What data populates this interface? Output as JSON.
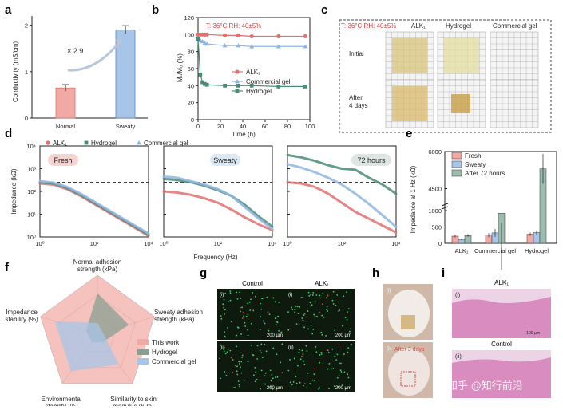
{
  "colors": {
    "red": "#e36f6f",
    "blue": "#8fb6e3",
    "green": "#4a8b78",
    "red_fill": "#f2a8a3",
    "green_fill": "#9cbcb0",
    "blue_fill": "#a7c5e8",
    "fluoro_bg": "#0d1a0d",
    "fluoro_dot": "#3ed46b",
    "he_pink": "#d98cbf",
    "skin": "#d9b9ab"
  },
  "panels": {
    "a": {
      "letter": "a"
    },
    "b": {
      "letter": "b"
    },
    "c": {
      "letter": "c",
      "condition": "T: 36°C  RH: 40±5%",
      "cols": [
        "ALK₁",
        "Hydrogel",
        "Commercial gel"
      ],
      "rows": [
        "Initial",
        "After\n4 days"
      ],
      "row1": "Initial",
      "row2a": "After",
      "row2b": "4 days"
    },
    "d": {
      "letter": "d"
    },
    "e": {
      "letter": "e"
    },
    "f": {
      "letter": "f"
    },
    "g": {
      "letter": "g",
      "col1": "Control",
      "col2": "ALK₁",
      "sub_i": "(i)",
      "sub_ii": "(ii)",
      "scale": "200 µm"
    },
    "h": {
      "letter": "h",
      "sub_i": "(i)",
      "sub_ii": "(ii)",
      "note": "After 3 days"
    },
    "i": {
      "letter": "i",
      "title1": "ALK₁",
      "title2": "Control",
      "sub_i": "(i)",
      "sub_ii": "(ii)",
      "scale": "100 µm"
    }
  },
  "watermark": "知乎 @知行前沿",
  "chart_data": [
    {
      "id": "a",
      "type": "bar",
      "categories": [
        "Normal",
        "Sweaty"
      ],
      "values": [
        0.65,
        1.9
      ],
      "errors": [
        0.07,
        0.09
      ],
      "ylabel": "Conductivity (mS/cm)",
      "ylim": [
        0,
        2.2
      ],
      "yticks": [
        "0",
        "1",
        "2"
      ],
      "annotation": "× 2.9"
    },
    {
      "id": "b",
      "type": "line",
      "condition": "T: 36°C  RH: 40±5%",
      "xlabel": "Time (h)",
      "ylabel": "Mₜ/M₀ (%)",
      "xlim": [
        0,
        100
      ],
      "ylim": [
        0,
        120
      ],
      "xticks": [
        "0",
        "20",
        "40",
        "60",
        "80",
        "100"
      ],
      "yticks": [
        "0",
        "20",
        "40",
        "60",
        "80",
        "100",
        "120"
      ],
      "series": [
        {
          "name": "ALK₁",
          "x": [
            0,
            2,
            4,
            6,
            8,
            24,
            36,
            48,
            72,
            96
          ],
          "y": [
            100,
            100,
            100,
            100,
            100,
            99,
            99,
            98,
            98,
            98
          ]
        },
        {
          "name": "Commercial gel",
          "x": [
            0,
            2,
            4,
            6,
            8,
            24,
            36,
            48,
            72,
            96
          ],
          "y": [
            95,
            93,
            92,
            90,
            89,
            87,
            87,
            86,
            86,
            86
          ]
        },
        {
          "name": "Hydrogel",
          "x": [
            0,
            2,
            4,
            6,
            8,
            24,
            36,
            48,
            72,
            96
          ],
          "y": [
            95,
            53,
            44,
            42,
            41,
            40,
            40,
            40,
            39,
            39
          ]
        }
      ]
    },
    {
      "id": "d",
      "type": "line",
      "xlabel": "Frequency (Hz)",
      "ylabel": "Impedance (kΩ)",
      "yticks": [
        "10⁰",
        "10¹",
        "10²",
        "10³",
        "10⁴"
      ],
      "xticks": [
        "10⁰",
        "10²",
        "10⁴"
      ],
      "legend": [
        "ALK₁",
        "Hydrogel",
        "Commercial gel"
      ],
      "subpanels": [
        {
          "title": "Fresh",
          "series": [
            {
              "name": "ALK₁",
              "x": [
                0,
                0.5,
                1,
                1.5,
                2,
                2.5,
                3,
                3.5,
                4
              ],
              "y": [
                2.35,
                2.3,
                2.1,
                1.8,
                1.45,
                1.1,
                0.75,
                0.4,
                0.05
              ]
            },
            {
              "name": "Hydrogel",
              "x": [
                0,
                0.5,
                1,
                1.5,
                2,
                2.5,
                3,
                3.5,
                4
              ],
              "y": [
                2.4,
                2.35,
                2.15,
                1.85,
                1.5,
                1.15,
                0.8,
                0.45,
                0.1
              ]
            },
            {
              "name": "Commercial gel",
              "x": [
                0,
                0.5,
                1,
                1.5,
                2,
                2.5,
                3,
                3.5,
                4
              ],
              "y": [
                2.45,
                2.38,
                2.2,
                1.9,
                1.55,
                1.2,
                0.85,
                0.5,
                0.15
              ]
            }
          ]
        },
        {
          "title": "Sweaty",
          "series": [
            {
              "name": "ALK₁",
              "x": [
                0,
                0.5,
                1,
                1.5,
                2,
                2.5,
                3,
                3.5,
                4
              ],
              "y": [
                2.0,
                1.95,
                1.85,
                1.7,
                1.5,
                1.2,
                0.85,
                0.55,
                0.3
              ]
            },
            {
              "name": "Hydrogel",
              "x": [
                0,
                0.5,
                1,
                1.5,
                2,
                2.5,
                3,
                3.5,
                4
              ],
              "y": [
                2.55,
                2.5,
                2.4,
                2.25,
                2.05,
                1.8,
                1.4,
                0.9,
                0.45
              ]
            },
            {
              "name": "Commercial gel",
              "x": [
                0,
                0.5,
                1,
                1.5,
                2,
                2.5,
                3,
                3.5,
                4
              ],
              "y": [
                2.65,
                2.6,
                2.45,
                2.3,
                2.1,
                1.8,
                1.3,
                0.8,
                0.35
              ]
            }
          ]
        },
        {
          "title": "72 hours",
          "series": [
            {
              "name": "ALK₁",
              "x": [
                0,
                0.5,
                1,
                1.5,
                2,
                2.5,
                3,
                3.5,
                4
              ],
              "y": [
                2.4,
                2.35,
                2.2,
                1.9,
                1.5,
                1.1,
                0.8,
                0.5,
                0.2
              ]
            },
            {
              "name": "Hydrogel",
              "x": [
                0,
                0.5,
                1,
                1.5,
                2,
                2.5,
                3,
                3.5,
                4
              ],
              "y": [
                3.6,
                3.5,
                3.35,
                3.15,
                3.0,
                2.95,
                2.6,
                2.3,
                1.9
              ]
            },
            {
              "name": "Commercial gel",
              "x": [
                0,
                0.5,
                1,
                1.5,
                2,
                2.5,
                3,
                3.5,
                4
              ],
              "y": [
                3.2,
                3.05,
                2.85,
                2.6,
                2.3,
                1.9,
                1.45,
                0.95,
                0.45
              ]
            }
          ]
        }
      ],
      "reference_y": 2.4
    },
    {
      "id": "e",
      "type": "bar",
      "ylabel": "Impedance at 1 Hz (kΩ)",
      "categories": [
        "ALK₁",
        "Commercial gel",
        "Hydrogel"
      ],
      "yticks": [
        "0",
        "500",
        "1000",
        "4500",
        "6000"
      ],
      "legend": [
        "Fresh",
        "Sweaty",
        "After 72 hours"
      ],
      "series": [
        {
          "name": "Fresh",
          "values": [
            220,
            250,
            280
          ],
          "errors": [
            40,
            60,
            50
          ]
        },
        {
          "name": "Sweaty",
          "values": [
            120,
            320,
            330
          ],
          "errors": [
            30,
            120,
            60
          ]
        },
        {
          "name": "After 72 hours",
          "values": [
            240,
            920,
            5300
          ],
          "errors": [
            40,
            300,
            600
          ]
        }
      ]
    },
    {
      "id": "f",
      "type": "radar",
      "axes": [
        "Normal adhesion strength (kPa)",
        "Sweaty adhesion strength (kPa)",
        "Similarity to skin modulus (kPa)",
        "Environmental stability (%)",
        "Impedance stability (%)"
      ],
      "axis_labels": [
        [
          "Normal adhesion",
          "strength (kPa)"
        ],
        [
          "Sweaty adhesion",
          "strength (kPa)"
        ],
        [
          "Similarity to skin",
          "modulus (kPa)"
        ],
        [
          "Environmental",
          "stability (%)"
        ],
        [
          "Impedance",
          "stability (%)"
        ]
      ],
      "legend": [
        "This work",
        "Hydrogel",
        "Commercial gel"
      ],
      "series": [
        {
          "name": "This work",
          "values": [
            1.0,
            1.0,
            1.0,
            1.0,
            1.0
          ]
        },
        {
          "name": "Hydrogel",
          "values": [
            0.7,
            0.55,
            0.15,
            0.15,
            0.2
          ]
        },
        {
          "name": "Commercial gel",
          "values": [
            0.2,
            0.1,
            0.6,
            0.75,
            0.75
          ]
        }
      ]
    }
  ]
}
